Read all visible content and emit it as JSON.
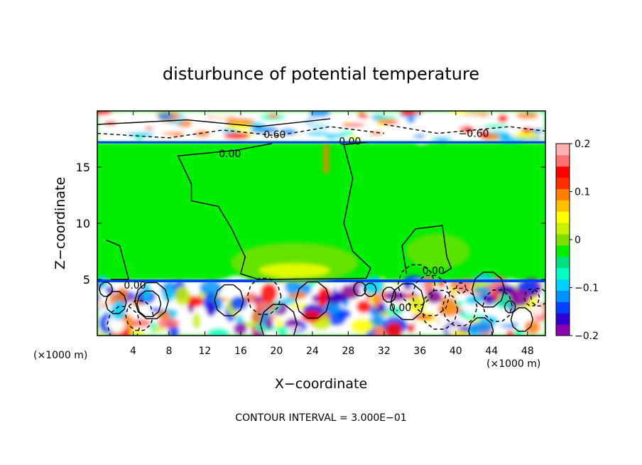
{
  "chart_data": {
    "type": "heatmap",
    "title": "disturbunce of potential temperature",
    "xlabel": "X−coordinate",
    "ylabel": "Z−coordinate",
    "x_unit": "(×1000 m)",
    "x_unit_right": "(×1000 m)",
    "xlim": [
      0,
      50
    ],
    "ylim": [
      0,
      20
    ],
    "x_ticks": [
      4,
      8,
      12,
      16,
      20,
      24,
      28,
      32,
      36,
      40,
      44,
      48
    ],
    "y_ticks": [
      5,
      10,
      15
    ],
    "colorbar": {
      "range": [
        -0.2,
        0.2
      ],
      "ticks": [
        {
          "value": 0.2,
          "label": "0.2"
        },
        {
          "value": 0.1,
          "label": "0.1"
        },
        {
          "value": 0,
          "label": "0"
        },
        {
          "value": -0.1,
          "label": "−0.1"
        },
        {
          "value": -0.2,
          "label": "−0.2"
        }
      ],
      "colors": [
        "#8b00b0",
        "#3000d0",
        "#0040ff",
        "#0090ff",
        "#00d0ff",
        "#00ffc0",
        "#00e080",
        "#00ee00",
        "#7ee000",
        "#c8f000",
        "#ffff00",
        "#ffc000",
        "#ff8000",
        "#ff3000",
        "#ff0000",
        "#ff7070",
        "#ffb0b0"
      ]
    },
    "contour_labels": [
      {
        "text": "0.00",
        "x": 14.8,
        "z": 16.2
      },
      {
        "text": "0.60",
        "x": 19.8,
        "z": 17.9
      },
      {
        "text": "0.00",
        "x": 28.2,
        "z": 17.3
      },
      {
        "text": "−0.60",
        "x": 42.0,
        "z": 18.0
      },
      {
        "text": "0.00",
        "x": 4.2,
        "z": 4.5
      },
      {
        "text": "0.00",
        "x": 33.8,
        "z": 2.5
      },
      {
        "text": "0.00",
        "x": 37.5,
        "z": 5.8
      }
    ],
    "footnote": "CONTOUR INTERVAL = 3.000E−01"
  }
}
